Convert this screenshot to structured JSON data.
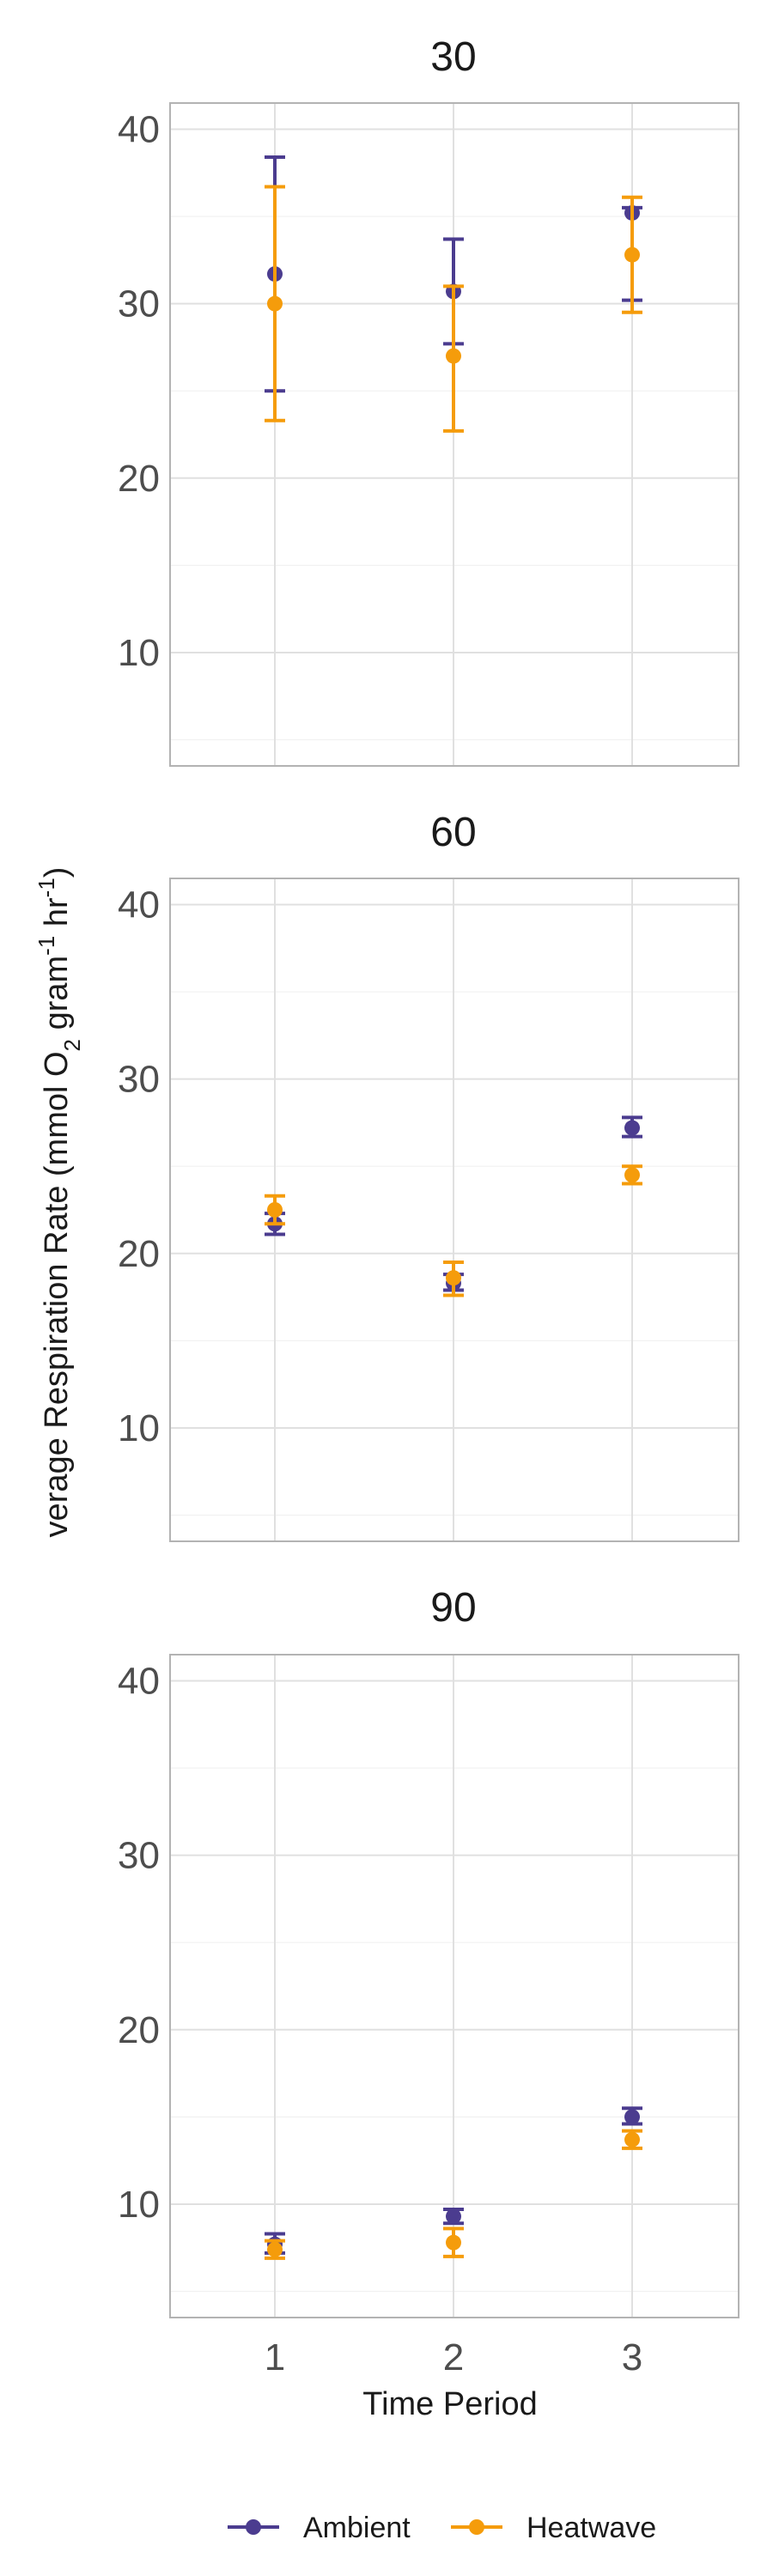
{
  "chart_data": {
    "type": "scatter",
    "subtype": "faceted-point-errorbar",
    "xlabel": "Time Period",
    "ylabel_main": "verage Respiration Rate (mmol O",
    "ylabel_sub": "2",
    "ylabel_unit": " gram",
    "ylabel_sup1": "-1",
    "ylabel_unit2": " hr",
    "ylabel_sup2": "-1",
    "ylabel_close": ")",
    "x_ticks": [
      "1",
      "2",
      "3"
    ],
    "y_ticks": [
      "10",
      "20",
      "30",
      "40"
    ],
    "ylim": [
      3.5,
      41.5
    ],
    "grid": true,
    "legend_position": "bottom",
    "series_meta": [
      {
        "name": "Ambient",
        "color": "#4b3c8f"
      },
      {
        "name": "Heatwave",
        "color": "#f59c0b"
      }
    ],
    "panels": [
      {
        "title": "30",
        "series": [
          {
            "name": "Ambient",
            "points": [
              {
                "x": 1,
                "y": 31.7,
                "ymin": 25.0,
                "ymax": 38.4
              },
              {
                "x": 2,
                "y": 30.7,
                "ymin": 27.7,
                "ymax": 33.7
              },
              {
                "x": 3,
                "y": 35.2,
                "ymin": 30.2,
                "ymax": 35.5
              }
            ]
          },
          {
            "name": "Heatwave",
            "points": [
              {
                "x": 1,
                "y": 30.0,
                "ymin": 23.3,
                "ymax": 36.7
              },
              {
                "x": 2,
                "y": 27.0,
                "ymin": 22.7,
                "ymax": 31.0
              },
              {
                "x": 3,
                "y": 32.8,
                "ymin": 29.5,
                "ymax": 36.1
              }
            ]
          }
        ]
      },
      {
        "title": "60",
        "series": [
          {
            "name": "Ambient",
            "points": [
              {
                "x": 1,
                "y": 21.7,
                "ymin": 21.1,
                "ymax": 22.3
              },
              {
                "x": 2,
                "y": 18.3,
                "ymin": 17.9,
                "ymax": 18.8
              },
              {
                "x": 3,
                "y": 27.2,
                "ymin": 26.7,
                "ymax": 27.8
              }
            ]
          },
          {
            "name": "Heatwave",
            "points": [
              {
                "x": 1,
                "y": 22.5,
                "ymin": 21.7,
                "ymax": 23.3
              },
              {
                "x": 2,
                "y": 18.6,
                "ymin": 17.6,
                "ymax": 19.5
              },
              {
                "x": 3,
                "y": 24.5,
                "ymin": 24.0,
                "ymax": 25.0
              }
            ]
          }
        ]
      },
      {
        "title": "90",
        "series": [
          {
            "name": "Ambient",
            "points": [
              {
                "x": 1,
                "y": 7.7,
                "ymin": 7.2,
                "ymax": 8.3
              },
              {
                "x": 2,
                "y": 9.3,
                "ymin": 8.9,
                "ymax": 9.7
              },
              {
                "x": 3,
                "y": 15.0,
                "ymin": 14.6,
                "ymax": 15.5
              }
            ]
          },
          {
            "name": "Heatwave",
            "points": [
              {
                "x": 1,
                "y": 7.4,
                "ymin": 6.9,
                "ymax": 7.9
              },
              {
                "x": 2,
                "y": 7.8,
                "ymin": 7.0,
                "ymax": 8.6
              },
              {
                "x": 3,
                "y": 13.7,
                "ymin": 13.2,
                "ymax": 14.2
              }
            ]
          }
        ]
      }
    ]
  }
}
